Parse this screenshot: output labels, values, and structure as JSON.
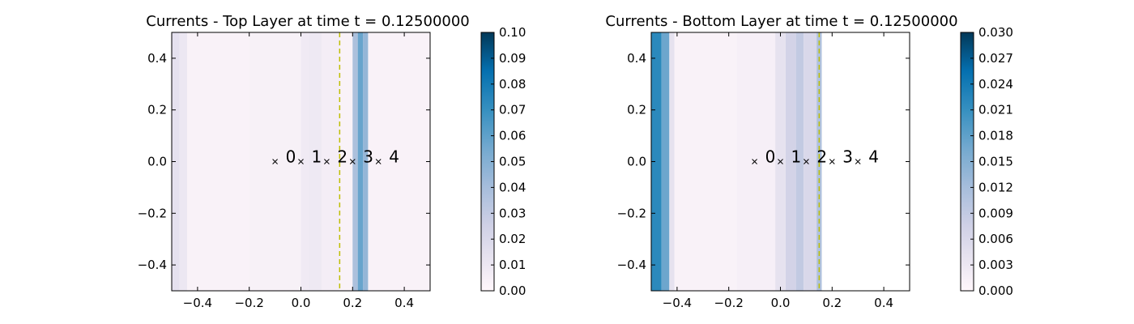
{
  "chart_data": [
    {
      "type": "heatmap",
      "title": "Currents - Top Layer at time t =     0.12500000",
      "xlim": [
        -0.5,
        0.5
      ],
      "ylim": [
        -0.5,
        0.5
      ],
      "xticks": [
        -0.4,
        -0.2,
        0.0,
        0.2,
        0.4
      ],
      "xtick_labels": [
        "−0.4",
        "−0.2",
        "0.0",
        "0.2",
        "0.4"
      ],
      "yticks": [
        -0.4,
        -0.2,
        0.0,
        0.2,
        0.4
      ],
      "ytick_labels": [
        "−0.4",
        "−0.2",
        "0.0",
        "0.2",
        "0.4"
      ],
      "colormap": "Blues-purple",
      "colorbar_range": [
        0.0,
        0.1
      ],
      "colorbar_ticks": [
        0.0,
        0.01,
        0.02,
        0.03,
        0.04,
        0.05,
        0.06,
        0.07,
        0.08,
        0.09,
        0.1
      ],
      "colorbar_tick_labels": [
        "0.00",
        "0.01",
        "0.02",
        "0.03",
        "0.04",
        "0.05",
        "0.06",
        "0.07",
        "0.08",
        "0.09",
        "0.10"
      ],
      "bands": [
        {
          "x0": -0.5,
          "x1": -0.47,
          "value": 0.014
        },
        {
          "x0": -0.47,
          "x1": -0.44,
          "value": 0.01
        },
        {
          "x0": -0.44,
          "x1": -0.2,
          "value": 0.003
        },
        {
          "x0": -0.2,
          "x1": -0.0,
          "value": 0.004
        },
        {
          "x0": -0.0,
          "x1": 0.03,
          "value": 0.008
        },
        {
          "x0": 0.03,
          "x1": 0.08,
          "value": 0.009
        },
        {
          "x0": 0.08,
          "x1": 0.15,
          "value": 0.006
        },
        {
          "x0": 0.15,
          "x1": 0.2,
          "value": 0.003
        },
        {
          "x0": 0.2,
          "x1": 0.22,
          "value": 0.038
        },
        {
          "x0": 0.22,
          "x1": 0.24,
          "value": 0.058
        },
        {
          "x0": 0.24,
          "x1": 0.26,
          "value": 0.045
        },
        {
          "x0": 0.26,
          "x1": 0.5,
          "value": 0.003
        }
      ],
      "dashed_line_x": 0.15,
      "markers": [
        {
          "x": -0.1,
          "y": 0.0,
          "label": "0"
        },
        {
          "x": 0.0,
          "y": 0.0,
          "label": "1"
        },
        {
          "x": 0.1,
          "y": 0.0,
          "label": "2"
        },
        {
          "x": 0.2,
          "y": 0.0,
          "label": "3"
        },
        {
          "x": 0.3,
          "y": 0.0,
          "label": "4"
        }
      ],
      "grid": false
    },
    {
      "type": "heatmap",
      "title": "Currents - Bottom Layer at time t =     0.12500000",
      "xlim": [
        -0.5,
        0.5
      ],
      "ylim": [
        -0.5,
        0.5
      ],
      "xticks": [
        -0.4,
        -0.2,
        0.0,
        0.2,
        0.4
      ],
      "xtick_labels": [
        "−0.4",
        "−0.2",
        "0.0",
        "0.2",
        "0.4"
      ],
      "yticks": [
        -0.4,
        -0.2,
        0.0,
        0.2,
        0.4
      ],
      "ytick_labels": [
        "−0.4",
        "−0.2",
        "0.0",
        "0.2",
        "0.4"
      ],
      "colormap": "Blues-purple",
      "colorbar_range": [
        0.0,
        0.03
      ],
      "colorbar_ticks": [
        0.0,
        0.003,
        0.006,
        0.009,
        0.012,
        0.015,
        0.018,
        0.021,
        0.024,
        0.027,
        0.03
      ],
      "colorbar_tick_labels": [
        "0.000",
        "0.003",
        "0.006",
        "0.009",
        "0.012",
        "0.015",
        "0.018",
        "0.021",
        "0.024",
        "0.027",
        "0.030"
      ],
      "bands": [
        {
          "x0": -0.5,
          "x1": -0.46,
          "value": 0.022
        },
        {
          "x0": -0.46,
          "x1": -0.43,
          "value": 0.017
        },
        {
          "x0": -0.43,
          "x1": -0.41,
          "value": 0.004
        },
        {
          "x0": -0.41,
          "x1": -0.17,
          "value": 0.001
        },
        {
          "x0": -0.17,
          "x1": -0.02,
          "value": 0.0015
        },
        {
          "x0": -0.02,
          "x1": 0.02,
          "value": 0.004
        },
        {
          "x0": 0.02,
          "x1": 0.06,
          "value": 0.007
        },
        {
          "x0": 0.06,
          "x1": 0.09,
          "value": 0.009
        },
        {
          "x0": 0.09,
          "x1": 0.14,
          "value": 0.006
        },
        {
          "x0": 0.14,
          "x1": 0.16,
          "value": 0.011
        },
        {
          "x0": 0.16,
          "x1": 0.5,
          "value": 0.0
        }
      ],
      "dashed_line_x": 0.15,
      "markers": [
        {
          "x": -0.1,
          "y": 0.0,
          "label": "0"
        },
        {
          "x": 0.0,
          "y": 0.0,
          "label": "1"
        },
        {
          "x": 0.1,
          "y": 0.0,
          "label": "2"
        },
        {
          "x": 0.2,
          "y": 0.0,
          "label": "3"
        },
        {
          "x": 0.3,
          "y": 0.0,
          "label": "4"
        }
      ],
      "grid": false
    }
  ]
}
